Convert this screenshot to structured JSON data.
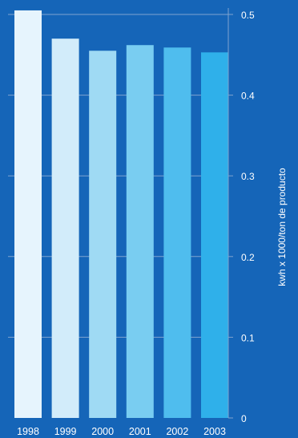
{
  "chart_data": {
    "type": "bar",
    "categories": [
      "1998",
      "1999",
      "2000",
      "2001",
      "2002",
      "2003"
    ],
    "values": [
      0.505,
      0.47,
      0.455,
      0.462,
      0.459,
      0.453
    ],
    "xlabel": "",
    "ylabel": "kwh x 1000/ton de producto",
    "ylim": [
      0,
      0.5
    ],
    "yticks": [
      "0",
      "0.1",
      "0.2",
      "0.3",
      "0.4",
      "0.5"
    ],
    "y_axis_position": "right",
    "grid": true,
    "colors": {
      "background": "#1565b8",
      "axis": "#7fa3cf",
      "text": "#ffffff",
      "bars": [
        "#e6f4fd",
        "#d2ecfa",
        "#9fdaf4",
        "#79cdf1",
        "#4fbdee",
        "#2fb0ea"
      ]
    }
  }
}
